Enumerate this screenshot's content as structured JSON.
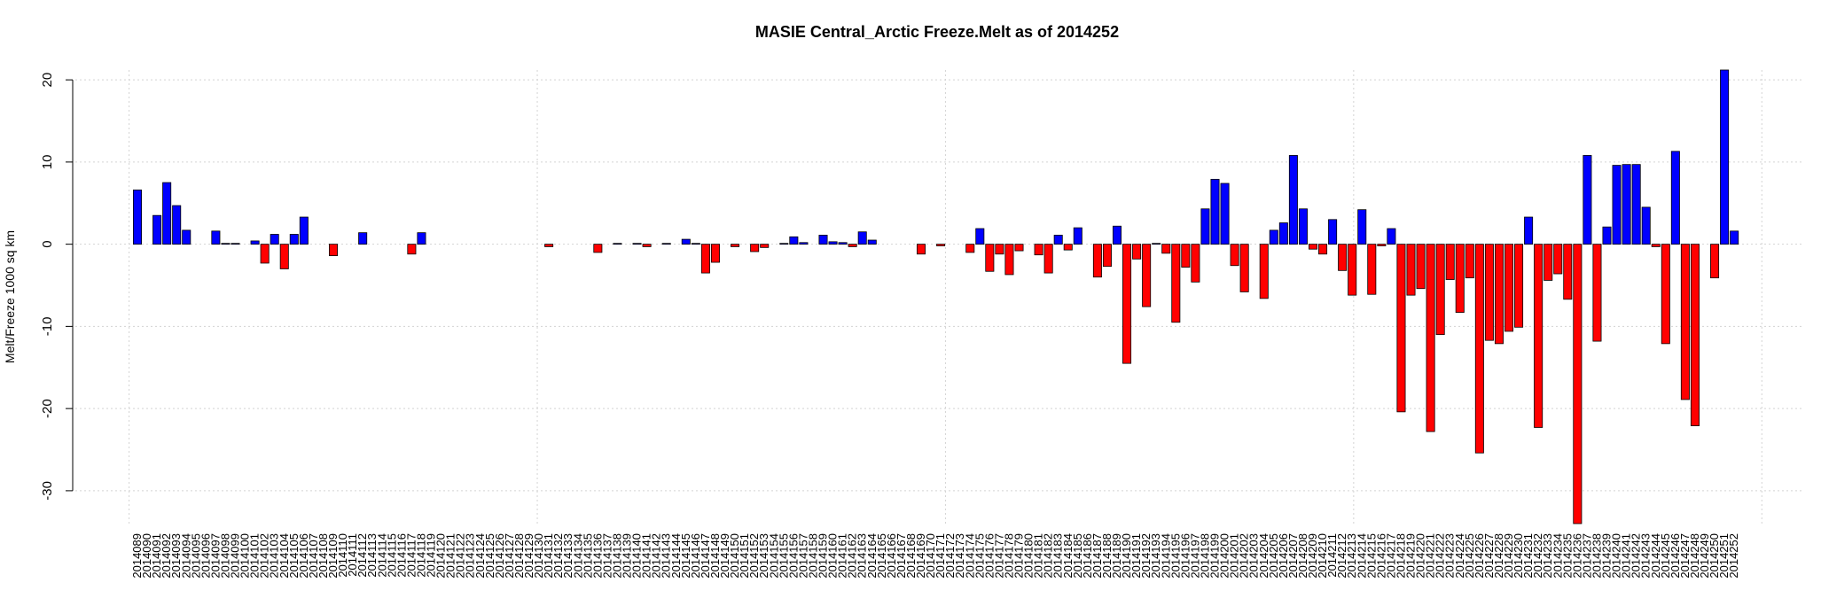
{
  "chart_data": {
    "type": "bar",
    "title": "MASIE Central_Arctic Freeze.Melt as of 2014252",
    "ylabel": "Melt/Freeze 1000 sq km",
    "categories": [
      "2014089",
      "2014090",
      "2014091",
      "2014092",
      "2014093",
      "2014094",
      "2014095",
      "2014096",
      "2014097",
      "2014098",
      "2014099",
      "2014100",
      "2014101",
      "2014102",
      "2014103",
      "2014104",
      "2014105",
      "2014106",
      "2014107",
      "2014108",
      "2014109",
      "2014110",
      "2014111",
      "2014112",
      "2014113",
      "2014114",
      "2014115",
      "2014116",
      "2014117",
      "2014118",
      "2014119",
      "2014120",
      "2014121",
      "2014122",
      "2014123",
      "2014124",
      "2014125",
      "2014126",
      "2014127",
      "2014128",
      "2014129",
      "2014130",
      "2014131",
      "2014132",
      "2014133",
      "2014134",
      "2014135",
      "2014136",
      "2014137",
      "2014138",
      "2014139",
      "2014140",
      "2014141",
      "2014142",
      "2014143",
      "2014144",
      "2014145",
      "2014146",
      "2014147",
      "2014148",
      "2014149",
      "2014150",
      "2014151",
      "2014152",
      "2014153",
      "2014154",
      "2014155",
      "2014156",
      "2014157",
      "2014158",
      "2014159",
      "2014160",
      "2014161",
      "2014162",
      "2014163",
      "2014164",
      "2014165",
      "2014166",
      "2014167",
      "2014168",
      "2014169",
      "2014170",
      "2014171",
      "2014172",
      "2014173",
      "2014174",
      "2014175",
      "2014176",
      "2014177",
      "2014178",
      "2014179",
      "2014180",
      "2014181",
      "2014182",
      "2014183",
      "2014184",
      "2014185",
      "2014186",
      "2014187",
      "2014188",
      "2014189",
      "2014190",
      "2014191",
      "2014192",
      "2014193",
      "2014194",
      "2014195",
      "2014196",
      "2014197",
      "2014198",
      "2014199",
      "2014200",
      "2014201",
      "2014202",
      "2014203",
      "2014204",
      "2014205",
      "2014206",
      "2014207",
      "2014208",
      "2014209",
      "2014210",
      "2014211",
      "2014212",
      "2014213",
      "2014214",
      "2014215",
      "2014216",
      "2014217",
      "2014218",
      "2014219",
      "2014220",
      "2014221",
      "2014222",
      "2014223",
      "2014224",
      "2014225",
      "2014226",
      "2014227",
      "2014228",
      "2014229",
      "2014230",
      "2014231",
      "2014232",
      "2014233",
      "2014234",
      "2014235",
      "2014236",
      "2014237",
      "2014238",
      "2014239",
      "2014240",
      "2014241",
      "2014242",
      "2014243",
      "2014244",
      "2014245",
      "2014246",
      "2014247",
      "2014248",
      "2014249",
      "2014250",
      "2014251",
      "2014252"
    ],
    "values": [
      6.6,
      0,
      3.5,
      7.5,
      4.7,
      1.7,
      0,
      0,
      1.6,
      0.1,
      0.1,
      0,
      0.4,
      -2.3,
      1.2,
      -3,
      1.2,
      3.3,
      0,
      0,
      -1.4,
      0,
      0,
      1.4,
      0,
      0,
      0,
      0,
      -1.2,
      1.4,
      0,
      0,
      0,
      0,
      0,
      0,
      0,
      0,
      0,
      0,
      0,
      0,
      -0.3,
      0,
      0,
      0,
      0,
      -1,
      0,
      0.1,
      0,
      0.1,
      -0.3,
      0,
      0.1,
      0,
      0.6,
      0.1,
      -3.5,
      -2.2,
      0,
      -0.3,
      0,
      -0.9,
      -0.4,
      0,
      0.1,
      0.9,
      0.2,
      0,
      1.1,
      0.3,
      0.2,
      -0.3,
      1.5,
      0.5,
      0,
      0,
      0,
      0,
      -1.2,
      0,
      -0.2,
      0,
      0,
      -1,
      1.9,
      -3.3,
      -1.2,
      -3.7,
      -0.8,
      0,
      -1.3,
      -3.5,
      1.1,
      -0.7,
      2,
      0,
      -4,
      -2.7,
      2.2,
      -14.5,
      -1.8,
      -7.6,
      0.1,
      -1.1,
      -9.5,
      -2.8,
      -4.6,
      4.3,
      7.9,
      7.4,
      -2.6,
      -5.8,
      0,
      -6.6,
      1.7,
      2.6,
      10.8,
      4.3,
      -0.6,
      -1.2,
      3,
      -3.2,
      -6.2,
      4.2,
      -6.1,
      -0.2,
      1.9,
      -20.4,
      -6.2,
      -5.4,
      -22.8,
      -11,
      -4.3,
      -8.3,
      -4.1,
      -25.4,
      -11.7,
      -12.1,
      -10.6,
      -10.1,
      3.3,
      -22.3,
      -4.4,
      -3.6,
      -6.7,
      -34,
      10.8,
      -11.8,
      2.1,
      9.6,
      9.7,
      9.7,
      4.5,
      -0.3,
      -12.1,
      11.3,
      -18.9,
      -22.1,
      0,
      -4.1,
      21.2,
      1.6
    ],
    "colors": {
      "positive": "#0000ff",
      "negative": "#ff0000"
    },
    "ylim": [
      -34,
      21.2
    ],
    "yticks": [
      -30,
      -20,
      -10,
      0,
      10,
      20
    ],
    "grid": true
  }
}
